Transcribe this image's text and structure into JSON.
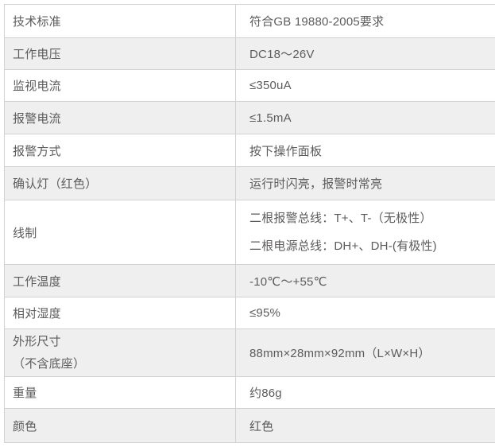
{
  "colors": {
    "row_shade": "#efefef",
    "border": "#d2d2d2",
    "text": "#5d5b5b",
    "background": "#ffffff"
  },
  "table": {
    "rows": [
      {
        "label": "技术标准",
        "value": "符合GB 19880-2005要求"
      },
      {
        "label": "工作电压",
        "value": "DC18～26V"
      },
      {
        "label": "监视电流",
        "value": "≤350uA"
      },
      {
        "label": "报警电流",
        "value": "≤1.5mA"
      },
      {
        "label": "报警方式",
        "value": "按下操作面板"
      },
      {
        "label": "确认灯（红色）",
        "value": "运行时闪亮，报警时常亮"
      },
      {
        "label": "线制",
        "value_lines": [
          "二根报警总线：T+、T-（无极性）",
          "二根电源总线：DH+、DH-(有极性)"
        ]
      },
      {
        "label": "工作温度",
        "value": "-10℃～+55℃"
      },
      {
        "label": "相对湿度",
        "value": "≤95%"
      },
      {
        "label_lines": [
          "外形尺寸",
          "（不含底座）"
        ],
        "value": "88mm×28mm×92mm（L×W×H）"
      },
      {
        "label": "重量",
        "value": "约86g"
      },
      {
        "label": "颜色",
        "value": "红色"
      }
    ]
  }
}
